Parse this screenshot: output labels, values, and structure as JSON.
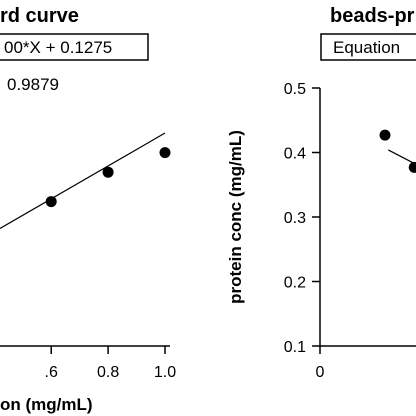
{
  "chart_data": [
    {
      "type": "scatter",
      "title": "rd curve",
      "equation": "00*X + 0.1275",
      "r_squared": "0.9879",
      "xlabel": "on (mg/mL)",
      "ylabel": "",
      "xlim": [
        0.42,
        1.08
      ],
      "ylim": [
        0.25,
        1.5
      ],
      "x_ticks": [
        0.6,
        0.8,
        1.0
      ],
      "x_tick_labels": [
        ".6",
        "0.8",
        "1.0"
      ],
      "points": [
        {
          "x": 0.6,
          "y": 0.84
        },
        {
          "x": 0.8,
          "y": 0.96
        },
        {
          "x": 1.0,
          "y": 1.04
        }
      ],
      "fit_line": {
        "x": [
          0.42,
          1.0
        ],
        "y": [
          0.73,
          1.12
        ]
      }
    },
    {
      "type": "scatter",
      "title": "beads-pr",
      "equation_label": "Equation",
      "xlabel": "",
      "ylabel": "protein conc (mg/mL)",
      "xlim": [
        0,
        2
      ],
      "ylim": [
        0.1,
        0.5
      ],
      "x_ticks": [
        0
      ],
      "x_tick_labels": [
        "0"
      ],
      "y_ticks": [
        0.1,
        0.2,
        0.3,
        0.4,
        0.5
      ],
      "y_tick_labels": [
        "0.1",
        "0.2",
        "0.3",
        "0.4",
        "0.5"
      ],
      "points": [
        {
          "x": 1.0,
          "y": 0.427
        },
        {
          "x": 1.45,
          "y": 0.377
        }
      ],
      "fit_line": {
        "x": [
          1.05,
          1.45
        ],
        "y": [
          0.404,
          0.383
        ]
      }
    }
  ]
}
